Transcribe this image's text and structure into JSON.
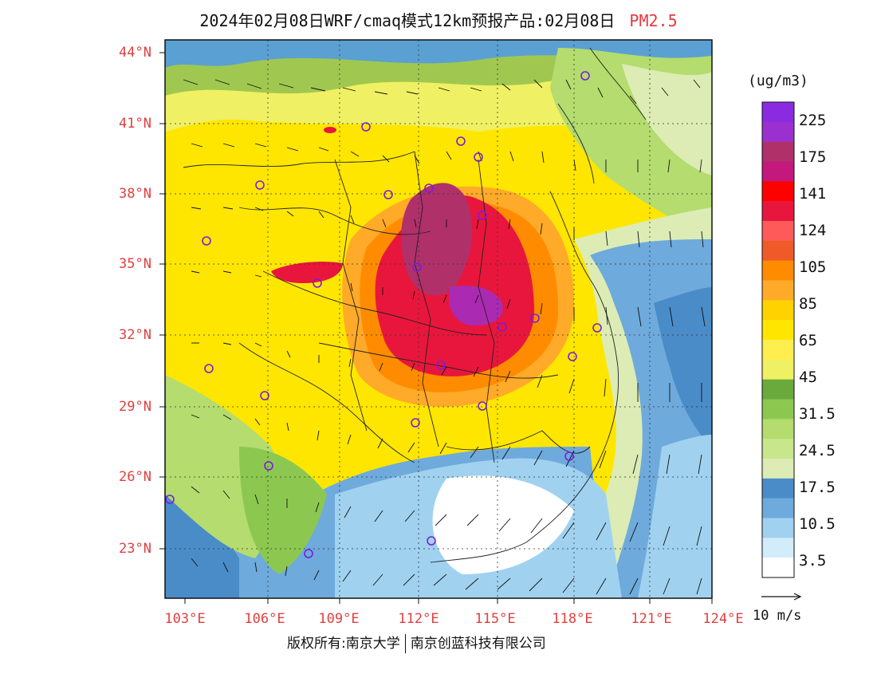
{
  "title": {
    "main": "2024年02月08日WRF/cmaq模式12km预报产品:02月08日",
    "pollutant": "PM2.5"
  },
  "map": {
    "latitudes": [
      "44°N",
      "41°N",
      "38°N",
      "35°N",
      "32°N",
      "29°N",
      "26°N",
      "23°N"
    ],
    "longitudes": [
      "103°E",
      "106°E",
      "109°E",
      "112°E",
      "115°E",
      "118°E",
      "121°E",
      "124°E"
    ]
  },
  "colorbar": {
    "unit": "(ug/m3)",
    "labels": [
      "225",
      "175",
      "141",
      "124",
      "105",
      "85",
      "65",
      "45",
      "31.5",
      "24.5",
      "17.5",
      "10.5",
      "3.5"
    ],
    "colors": [
      "#8a2be2",
      "#9b30d0",
      "#b0306a",
      "#c4187c",
      "#ff0000",
      "#e8163c",
      "#ff5a5a",
      "#f05a28",
      "#ff8c00",
      "#ffaa28",
      "#ffd200",
      "#ffe600",
      "#ffee50",
      "#f0f064",
      "#6aaa3c",
      "#8cc850",
      "#b4dc6e",
      "#c8e68c",
      "#dcecb4",
      "#4a8cc8",
      "#6eaadc",
      "#a0d2f0",
      "#d2ecfa",
      "#ffffff"
    ]
  },
  "wind_scale": {
    "label": "10 m/s"
  },
  "copyright": {
    "left": "版权所有:南京大学",
    "right": "南京创蓝科技有限公司"
  }
}
